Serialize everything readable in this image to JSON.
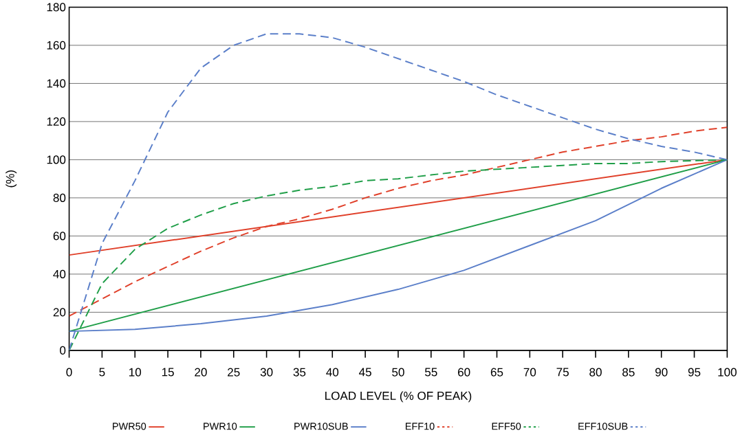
{
  "chart_data": {
    "type": "line",
    "xlabel": "LOAD LEVEL (% OF PEAK)",
    "ylabel": "(%)",
    "x": [
      0,
      5,
      10,
      15,
      20,
      25,
      30,
      35,
      40,
      45,
      50,
      55,
      60,
      65,
      70,
      75,
      80,
      85,
      90,
      95,
      100
    ],
    "xlim": [
      0,
      100
    ],
    "xticks": [
      0,
      5,
      10,
      15,
      20,
      25,
      30,
      35,
      40,
      45,
      50,
      55,
      60,
      65,
      70,
      75,
      80,
      85,
      90,
      95,
      100
    ],
    "ylim": [
      0,
      180
    ],
    "yticks": [
      0,
      20,
      40,
      60,
      80,
      100,
      120,
      140,
      160,
      180
    ],
    "grid": "y",
    "legend": "bottom",
    "series": [
      {
        "name": "PWR50",
        "color": "#e0402a",
        "line_style": "solid",
        "x": [
          0,
          100
        ],
        "values": [
          50,
          100
        ]
      },
      {
        "name": "PWR10",
        "color": "#1f9e48",
        "line_style": "solid",
        "x": [
          0,
          100
        ],
        "values": [
          10,
          100
        ]
      },
      {
        "name": "PWR10SUB",
        "color": "#5b7fc9",
        "line_style": "solid",
        "x": [
          0,
          10,
          20,
          30,
          40,
          50,
          60,
          70,
          80,
          90,
          100
        ],
        "values": [
          10,
          11,
          14,
          18,
          24,
          32,
          42,
          55,
          68,
          85,
          100
        ]
      },
      {
        "name": "EFF10",
        "color": "#e0402a",
        "line_style": "dashed",
        "values": [
          18,
          27,
          36,
          44,
          52,
          59,
          65,
          69,
          74,
          80,
          85,
          89,
          92,
          96,
          100,
          104,
          107,
          110,
          112,
          115,
          117
        ]
      },
      {
        "name": "EFF50",
        "color": "#1f9e48",
        "line_style": "dashed",
        "values": [
          0,
          35,
          53,
          64,
          71,
          77,
          81,
          84,
          86,
          89,
          90,
          92,
          94,
          95,
          96,
          97,
          98,
          98,
          99,
          99.5,
          100
        ]
      },
      {
        "name": "EFF10SUB",
        "color": "#5b7fc9",
        "line_style": "dashed",
        "values": [
          0,
          56,
          89,
          125,
          148,
          160,
          166,
          166,
          164,
          159,
          153,
          147,
          141,
          134,
          128,
          122,
          116,
          111,
          107,
          104,
          100
        ]
      }
    ]
  }
}
